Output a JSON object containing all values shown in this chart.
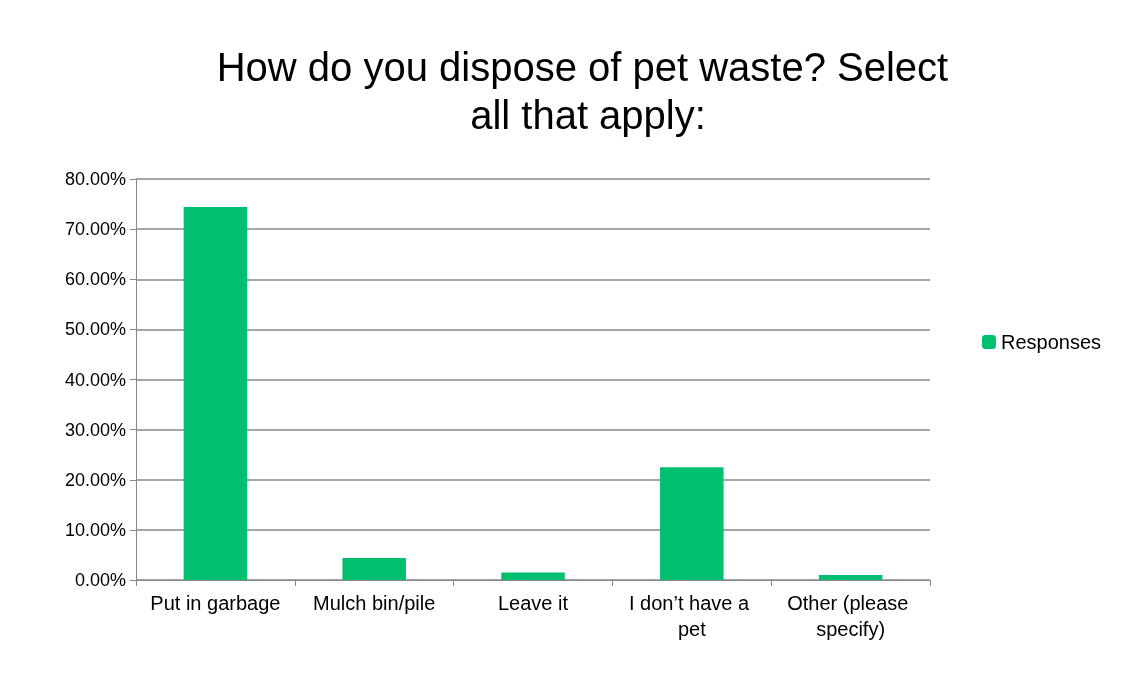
{
  "chart_data": {
    "type": "bar",
    "title": "How do you dispose of pet waste? Select all that apply:",
    "categories": [
      "Put in garbage",
      "Mulch bin/pile",
      "Leave it",
      "I don’t have a pet",
      "Other (please specify)"
    ],
    "series": [
      {
        "name": "Responses",
        "color": "#00bf6f",
        "values": [
          74.4,
          4.4,
          1.5,
          22.5,
          1.0
        ]
      }
    ],
    "ylim": [
      0,
      80
    ],
    "yticks": [
      {
        "value": 0,
        "label": "0.00%"
      },
      {
        "value": 10,
        "label": "10.00%"
      },
      {
        "value": 20,
        "label": "20.00%"
      },
      {
        "value": 30,
        "label": "30.00%"
      },
      {
        "value": 40,
        "label": "40.00%"
      },
      {
        "value": 50,
        "label": "50.00%"
      },
      {
        "value": 60,
        "label": "60.00%"
      },
      {
        "value": 70,
        "label": "70.00%"
      },
      {
        "value": 80,
        "label": "80.00%"
      }
    ],
    "grid": "y",
    "legend": "right"
  }
}
